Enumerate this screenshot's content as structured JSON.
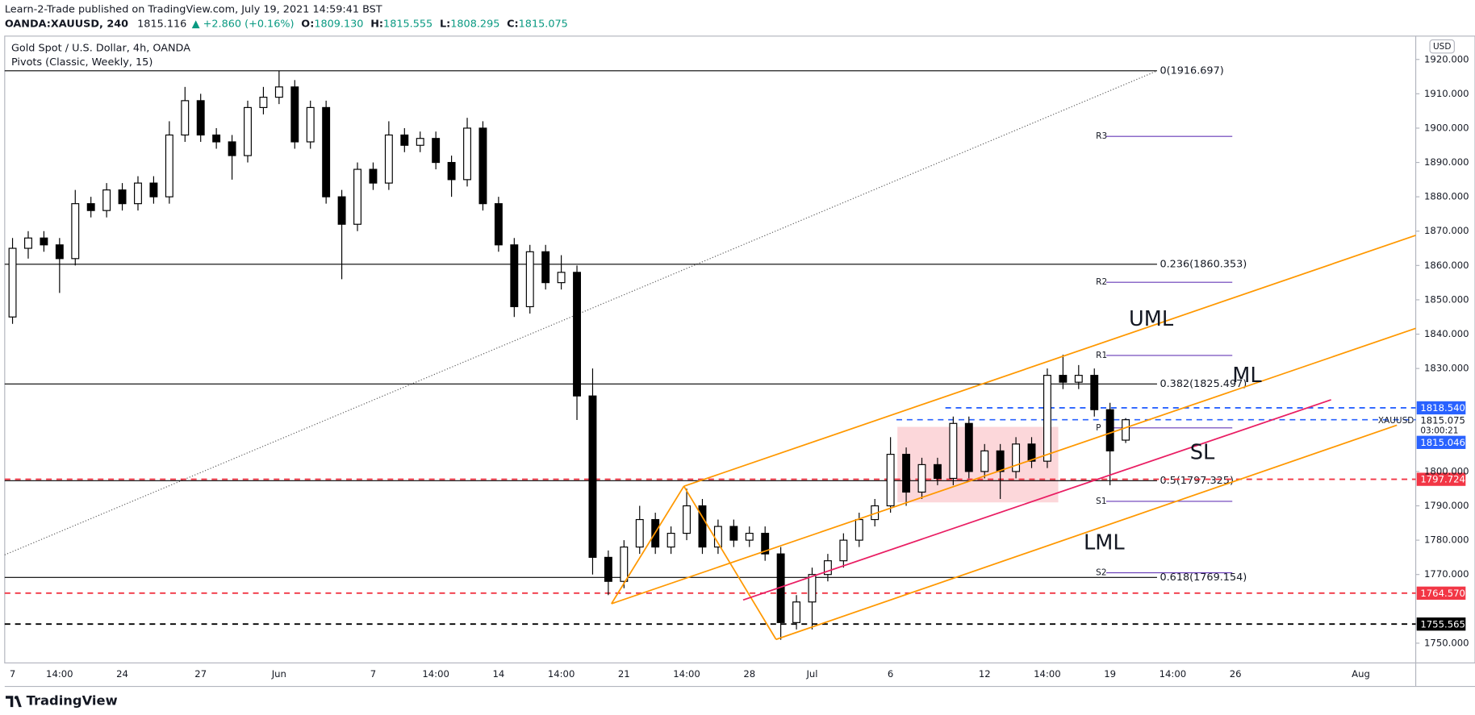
{
  "header": {
    "published": "Learn-2-Trade published on TradingView.com, July 19, 2021 14:59:41 BST",
    "symbol": "OANDA:XAUUSD, 240",
    "price": "1815.116",
    "change": "▲ +2.860 (+0.16%)",
    "ohlc": [
      {
        "key": "O:",
        "value": "1809.130"
      },
      {
        "key": "H:",
        "value": "1815.555"
      },
      {
        "key": "L:",
        "value": "1808.295"
      },
      {
        "key": "C:",
        "value": "1815.075"
      }
    ]
  },
  "footer": {
    "brand": "TradingView"
  },
  "chart_data": {
    "type": "candlestick",
    "title": "Gold Spot / U.S. Dollar, 4h, OANDA",
    "subtitle": "Pivots (Classic, Weekly, 15)",
    "currency": "USD",
    "ylim": [
      1744.25,
      1926.8
    ],
    "yticks": [
      {
        "value": 1750,
        "label": "1750.000"
      },
      {
        "value": 1770,
        "label": "1770.000"
      },
      {
        "value": 1780,
        "label": "1780.000"
      },
      {
        "value": 1790,
        "label": "1790.000"
      },
      {
        "value": 1800,
        "label": "1800.000"
      },
      {
        "value": 1830,
        "label": "1830.000"
      },
      {
        "value": 1840,
        "label": "1840.000"
      },
      {
        "value": 1850,
        "label": "1850.000"
      },
      {
        "value": 1860,
        "label": "1860.000"
      },
      {
        "value": 1870,
        "label": "1870.000"
      },
      {
        "value": 1880,
        "label": "1880.000"
      },
      {
        "value": 1890,
        "label": "1890.000"
      },
      {
        "value": 1900,
        "label": "1900.000"
      },
      {
        "value": 1910,
        "label": "1910.000"
      },
      {
        "value": 1920,
        "label": "1920.000"
      }
    ],
    "categories": [
      "7",
      null,
      null,
      "14:00",
      null,
      null,
      null,
      "24",
      null,
      null,
      null,
      null,
      "27",
      null,
      null,
      null,
      null,
      "Jun",
      null,
      null,
      null,
      null,
      null,
      "7",
      null,
      null,
      null,
      "14:00",
      null,
      null,
      null,
      "14",
      null,
      null,
      null,
      "14:00",
      null,
      null,
      null,
      "21",
      null,
      null,
      null,
      "14:00",
      null,
      null,
      null,
      "28",
      null,
      null,
      null,
      "Jul",
      null,
      null,
      null,
      null,
      "6",
      null,
      null,
      null,
      null,
      null,
      "12",
      null,
      null,
      null,
      "14:00",
      null,
      null,
      null,
      "19",
      null,
      null,
      null,
      "14:00",
      null,
      null,
      null,
      "26",
      null,
      null,
      null,
      null,
      null,
      null,
      null,
      "Aug",
      null,
      null,
      null
    ],
    "series": [
      {
        "name": "OANDA:XAUUSD",
        "up_color": "#ffffff",
        "down_color": "#000000",
        "values": [
          [
            1845,
            1868,
            1843,
            1865
          ],
          [
            1865,
            1870,
            1862,
            1868
          ],
          [
            1868,
            1870,
            1864,
            1866
          ],
          [
            1866,
            1868,
            1852,
            1862
          ],
          [
            1862,
            1882,
            1860,
            1878
          ],
          [
            1878,
            1880,
            1874,
            1876
          ],
          [
            1876,
            1884,
            1874,
            1882
          ],
          [
            1882,
            1884,
            1876,
            1878
          ],
          [
            1878,
            1886,
            1876,
            1884
          ],
          [
            1884,
            1886,
            1878,
            1880
          ],
          [
            1880,
            1902,
            1878,
            1898
          ],
          [
            1898,
            1912,
            1896,
            1908
          ],
          [
            1908,
            1910,
            1896,
            1898
          ],
          [
            1898,
            1900,
            1894,
            1896
          ],
          [
            1896,
            1898,
            1885,
            1892
          ],
          [
            1892,
            1908,
            1890,
            1906
          ],
          [
            1906,
            1912,
            1904,
            1909
          ],
          [
            1909,
            1916.7,
            1907,
            1912
          ],
          [
            1912,
            1914,
            1894,
            1896
          ],
          [
            1896,
            1908,
            1894,
            1906
          ],
          [
            1906,
            1908,
            1878,
            1880
          ],
          [
            1880,
            1882,
            1856,
            1872
          ],
          [
            1872,
            1890,
            1870,
            1888
          ],
          [
            1888,
            1890,
            1882,
            1884
          ],
          [
            1884,
            1902,
            1882,
            1898
          ],
          [
            1898,
            1900,
            1893,
            1895
          ],
          [
            1895,
            1899,
            1893,
            1897
          ],
          [
            1897,
            1899,
            1888,
            1890
          ],
          [
            1890,
            1892,
            1880,
            1885
          ],
          [
            1885,
            1903,
            1883,
            1900
          ],
          [
            1900,
            1902,
            1876,
            1878
          ],
          [
            1878,
            1880,
            1864,
            1866
          ],
          [
            1866,
            1868,
            1845,
            1848
          ],
          [
            1848,
            1866,
            1846,
            1864
          ],
          [
            1864,
            1866,
            1853,
            1855
          ],
          [
            1855,
            1863,
            1853,
            1858
          ],
          [
            1858,
            1860,
            1815,
            1822
          ],
          [
            1822,
            1830,
            1770,
            1775
          ],
          [
            1775,
            1777,
            1764,
            1768
          ],
          [
            1768,
            1780,
            1766,
            1778
          ],
          [
            1778,
            1790,
            1776,
            1786
          ],
          [
            1786,
            1788,
            1776,
            1778
          ],
          [
            1778,
            1784,
            1776,
            1782
          ],
          [
            1782,
            1795,
            1780,
            1790
          ],
          [
            1790,
            1792,
            1776,
            1778
          ],
          [
            1778,
            1786,
            1776,
            1784
          ],
          [
            1784,
            1786,
            1778,
            1780
          ],
          [
            1780,
            1784,
            1778,
            1782
          ],
          [
            1782,
            1784,
            1774,
            1776
          ],
          [
            1776,
            1778,
            1751,
            1756
          ],
          [
            1756,
            1764,
            1754,
            1762
          ],
          [
            1762,
            1772,
            1754,
            1770
          ],
          [
            1770,
            1776,
            1768,
            1774
          ],
          [
            1774,
            1782,
            1772,
            1780
          ],
          [
            1780,
            1788,
            1778,
            1786
          ],
          [
            1786,
            1792,
            1784,
            1790
          ],
          [
            1790,
            1810,
            1788,
            1805
          ],
          [
            1805,
            1807,
            1790,
            1794
          ],
          [
            1794,
            1804,
            1792,
            1802
          ],
          [
            1802,
            1804,
            1796,
            1798
          ],
          [
            1798,
            1816,
            1796,
            1814
          ],
          [
            1814,
            1816,
            1798,
            1800
          ],
          [
            1800,
            1808,
            1798,
            1806
          ],
          [
            1806,
            1808,
            1792,
            1800
          ],
          [
            1800,
            1810,
            1798,
            1808
          ],
          [
            1808,
            1810,
            1801,
            1803
          ],
          [
            1803,
            1830,
            1801,
            1828
          ],
          [
            1828,
            1834,
            1824,
            1826
          ],
          [
            1826,
            1831,
            1824,
            1828
          ],
          [
            1828,
            1830,
            1816,
            1818
          ],
          [
            1818,
            1820,
            1796,
            1806
          ],
          [
            1809.13,
            1815.555,
            1808.295,
            1815.075
          ],
          null,
          null,
          null,
          null,
          null,
          null,
          null,
          null,
          null,
          null,
          null,
          null,
          null,
          null,
          null,
          null,
          null,
          null
        ]
      }
    ],
    "fib_levels": [
      {
        "label": "0(1916.697)",
        "value": 1916.697
      },
      {
        "label": "0.236(1860.353)",
        "value": 1860.353
      },
      {
        "label": "0.382(1825.497)",
        "value": 1825.497
      },
      {
        "label": "0.5(1797.325)",
        "value": 1797.325
      },
      {
        "label": "0.618(1769.154)",
        "value": 1769.154
      }
    ],
    "pivots": [
      {
        "label": "R3",
        "value": 1897.6
      },
      {
        "label": "R2",
        "value": 1855.1
      },
      {
        "label": "R1",
        "value": 1833.8
      },
      {
        "label": "P",
        "value": 1812.7
      },
      {
        "label": "S1",
        "value": 1791.3
      },
      {
        "label": "S2",
        "value": 1770.5
      }
    ],
    "pivot_color": "#673ab7",
    "zone": [
      1791,
      1813
    ],
    "levels": [
      {
        "value": 1818.54,
        "label": "1818.540",
        "color": "#2962ff"
      },
      {
        "value": 1797.724,
        "label": "1797.724",
        "color": "#f23645"
      },
      {
        "value": 1764.57,
        "label": "1764.570",
        "color": "#f23645"
      },
      {
        "value": 1755.565,
        "label": "1755.565",
        "color": "#000000"
      }
    ],
    "last_price": {
      "value": 1815.075,
      "label": "1815.075",
      "symbol": "XAUUSD",
      "countdown": "03:00:21",
      "color": "#2962ff"
    },
    "prev_price": {
      "value": 1815.046,
      "label": "1815.046",
      "color": "#2962ff"
    },
    "annotations": [
      "UML",
      "ML",
      "SL",
      "LML"
    ],
    "pitchfork_color": "#ff9800",
    "sl_color": "#e91e63"
  }
}
